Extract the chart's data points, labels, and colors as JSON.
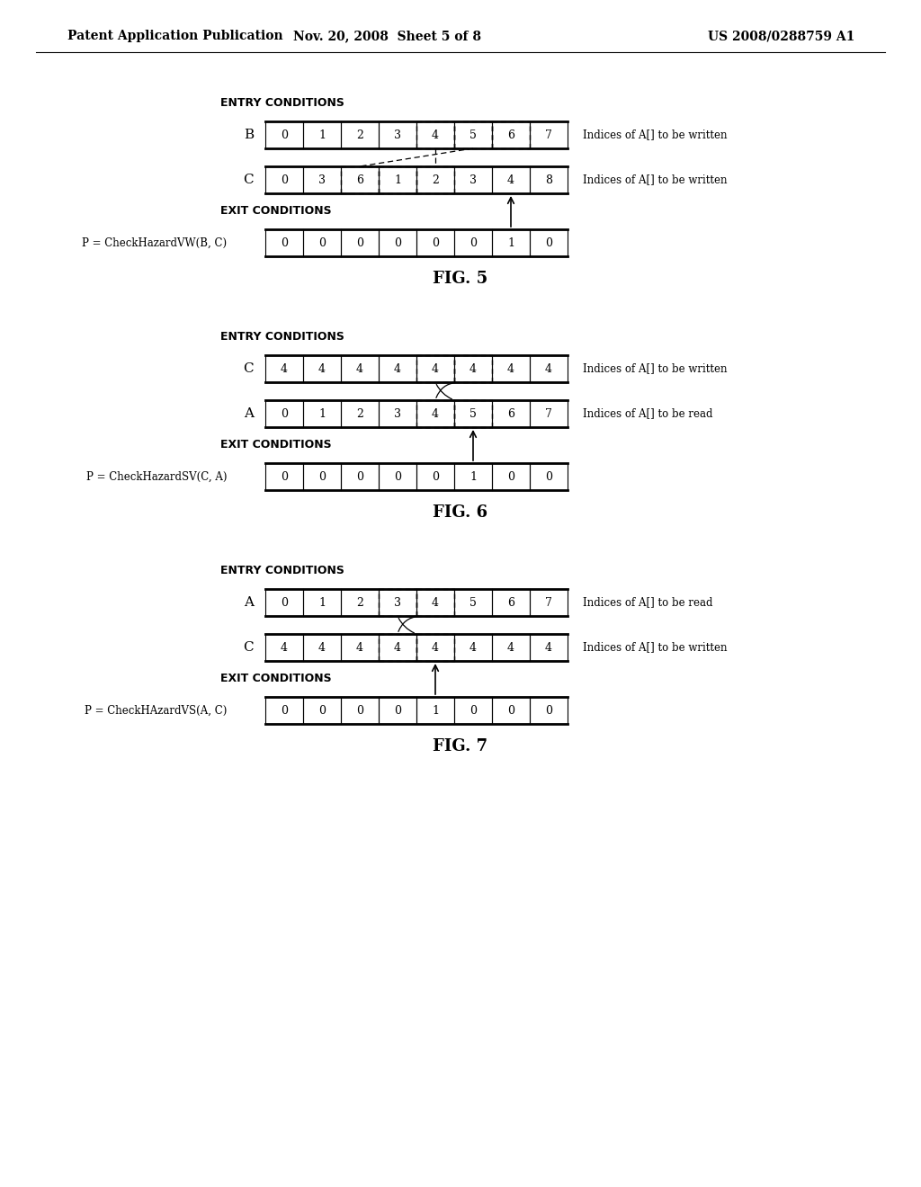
{
  "header_left": "Patent Application Publication",
  "header_mid": "Nov. 20, 2008  Sheet 5 of 8",
  "header_right": "US 2008/0288759 A1",
  "fig5": {
    "title": "ENTRY CONDITIONS",
    "exit_title": "EXIT CONDITIONS",
    "fig_label": "FIG. 5",
    "row1_label": "B",
    "row1_values": [
      "0",
      "1",
      "2",
      "3",
      "4",
      "5",
      "6",
      "7"
    ],
    "row1_annotation": "Indices of A[] to be written",
    "row2_label": "C",
    "row2_values": [
      "0",
      "3",
      "6",
      "1",
      "2",
      "3",
      "4",
      "8"
    ],
    "row2_annotation": "Indices of A[] to be written",
    "exit_label": "P = CheckHazardVW(B, C)",
    "exit_values": [
      "0",
      "0",
      "0",
      "0",
      "0",
      "0",
      "1",
      "0"
    ],
    "dashed_cells_row1": [
      4,
      5,
      6
    ],
    "dashed_cells_row2": [
      2,
      3,
      4
    ],
    "arrow_up_col": 6,
    "cross_line1_from": 5.5,
    "cross_line1_to": 2.5,
    "cross_line2_from": 4.5,
    "cross_line2_to": 4.5
  },
  "fig6": {
    "title": "ENTRY CONDITIONS",
    "exit_title": "EXIT CONDITIONS",
    "fig_label": "FIG. 6",
    "row1_label": "C",
    "row1_values": [
      "4",
      "4",
      "4",
      "4",
      "4",
      "4",
      "4",
      "4"
    ],
    "row1_annotation": "Indices of A[] to be written",
    "row2_label": "A",
    "row2_values": [
      "0",
      "1",
      "2",
      "3",
      "4",
      "5",
      "6",
      "7"
    ],
    "row2_annotation": "Indices of A[] to be read",
    "exit_label": "P = CheckHazardSV(C, A)",
    "exit_values": [
      "0",
      "0",
      "0",
      "0",
      "0",
      "1",
      "0",
      "0"
    ],
    "dashed_cells_row1": [
      4,
      5
    ],
    "dashed_cells_row2": [
      4,
      5
    ],
    "arrow_up_col": 5
  },
  "fig7": {
    "title": "ENTRY CONDITIONS",
    "exit_title": "EXIT CONDITIONS",
    "fig_label": "FIG. 7",
    "row1_label": "A",
    "row1_values": [
      "0",
      "1",
      "2",
      "3",
      "4",
      "5",
      "6",
      "7"
    ],
    "row1_annotation": "Indices of A[] to be read",
    "row2_label": "C",
    "row2_values": [
      "4",
      "4",
      "4",
      "4",
      "4",
      "4",
      "4",
      "4"
    ],
    "row2_annotation": "Indices of A[] to be written",
    "exit_label": "P = CheckHAzardVS(A, C)",
    "exit_values": [
      "0",
      "0",
      "0",
      "0",
      "1",
      "0",
      "0",
      "0"
    ],
    "dashed_cells_row1": [
      3,
      4
    ],
    "dashed_cells_row2": [
      3,
      4
    ],
    "arrow_up_col": 4
  },
  "bg_color": "#ffffff"
}
